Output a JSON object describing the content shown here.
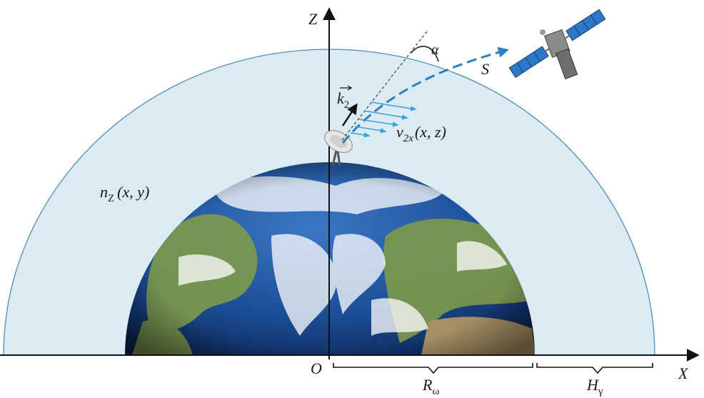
{
  "labels": {
    "z_axis": "Z",
    "x_axis": "X",
    "origin": "O",
    "alpha": "α",
    "satellite": "S",
    "k_vector": "k",
    "k_sub": "2",
    "v_main": "v",
    "v_sub": "2x",
    "v_args": "(x, z)",
    "n_main": "n",
    "n_sub": "Z",
    "n_args": "(x, y)",
    "r_main": "R",
    "r_sub": "ω",
    "h_main": "H",
    "h_sub": "γ"
  },
  "colors": {
    "atmosphere_fill": "#dcebf3",
    "atmosphere_stroke": "#4d8fb8",
    "earth_ocean": "#1d4f97",
    "earth_land": "#7e9a4b",
    "cloud": "#ffffff",
    "ray_dashed": "#2e7ec0",
    "wind_arrows": "#36a3dc",
    "axis": "#111111",
    "satellite_panels": "#2b78c9"
  }
}
